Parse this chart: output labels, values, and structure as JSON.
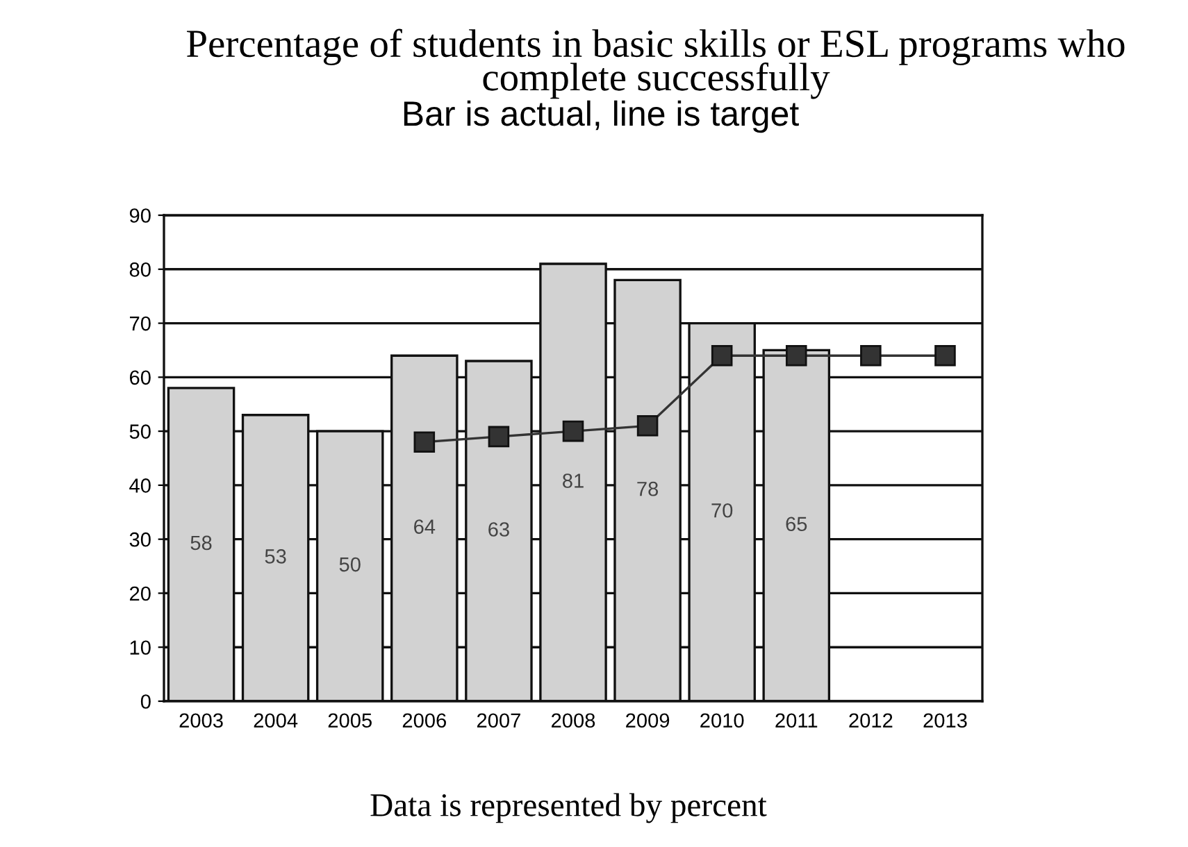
{
  "chart_data": {
    "type": "bar",
    "title": "Percentage of students in basic skills or ESL programs who\ncomplete successfully",
    "subtitle": "Bar is actual, line is target",
    "annotations": [
      "Data is represented by percent"
    ],
    "categories": [
      "2003",
      "2004",
      "2005",
      "2006",
      "2007",
      "2008",
      "2009",
      "2010",
      "2011",
      "2012",
      "2013"
    ],
    "series": [
      {
        "color": "#d2d2d2",
        "values": [
          58,
          53,
          50,
          64,
          63,
          81,
          78,
          70,
          65,
          null,
          null
        ],
        "value_labels": [
          "58",
          "53",
          "50",
          "64",
          "63",
          "81",
          "78",
          "70",
          "65",
          null,
          null
        ]
      },
      {
        "type": "line",
        "color": "#333333",
        "values": [
          null,
          null,
          null,
          48,
          49,
          50,
          51,
          64,
          64,
          64,
          64
        ]
      }
    ],
    "ylim": [
      0,
      90
    ],
    "yticks": [
      0,
      10,
      20,
      30,
      40,
      50,
      60,
      70,
      80,
      90
    ],
    "grid": "y",
    "marker": "square",
    "line_style": "solid"
  }
}
